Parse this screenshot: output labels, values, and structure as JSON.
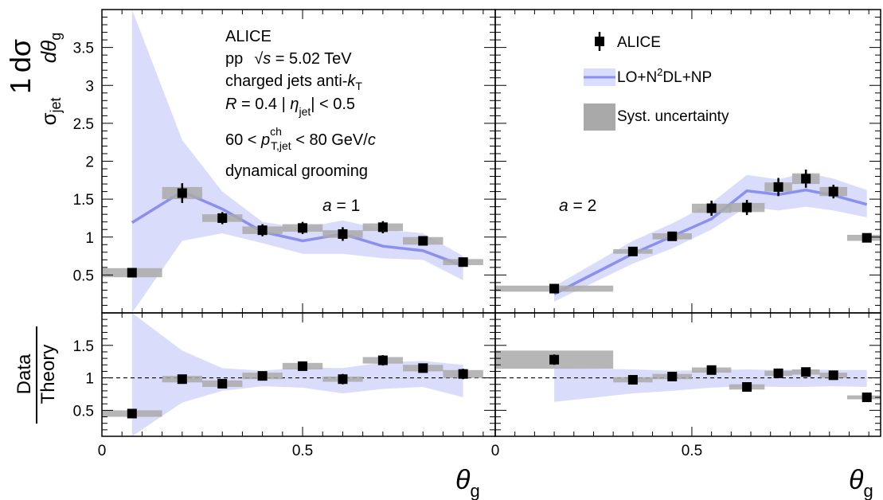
{
  "colors": {
    "band": "#dadcfb",
    "line": "#8a8ff0",
    "syst": "#a9a9a9",
    "marker": "#000000"
  },
  "info": {
    "experiment": "ALICE",
    "energy_prefix": "pp",
    "energy_sqrt": "√",
    "energy_s": "s",
    "energy_suffix": " = 5.02 TeV",
    "jets_text": "charged jets   anti-",
    "jets_k": "k",
    "jets_k_sub": "T",
    "radius_R": "R",
    "radius_rest": " = 0.4    | ",
    "eta_symbol": "η",
    "eta_sub": "jet",
    "eta_rest": "| < 0.5",
    "pt_lo": "60 < ",
    "pt_p": "p",
    "pt_sup": "ch",
    "pt_sub": "T,jet",
    "pt_hi": " < 80 GeV/",
    "pt_c": "c",
    "grooming": "dynamical grooming"
  },
  "legend": {
    "data": "ALICE",
    "theory_pre": "LO+N",
    "theory_sup": "2",
    "theory_post": "DL+NP",
    "syst": "Syst. uncertainty"
  },
  "axes": {
    "xlabel": "θ",
    "xlabel_sub": "g",
    "ylabel_top_num": "1",
    "ylabel_top_den": "σ",
    "ylabel_top_den_sub": "jet",
    "ylabel_top_frac_num": "dσ",
    "ylabel_top_frac_den": "dθ",
    "ylabel_top_frac_den_sub": "g",
    "ylabel_bottom_num": "Data",
    "ylabel_bottom_den": "Theory"
  },
  "chart_data": [
    {
      "type": "line",
      "panel": "left-top",
      "annotation_var": "a",
      "annotation_val": " = 1",
      "xlim": [
        0,
        0.98
      ],
      "ylim": [
        0,
        4.0
      ],
      "yticks": [
        0.5,
        1,
        1.5,
        2,
        2.5,
        3,
        3.5
      ],
      "ytick_labels": [
        "0.5",
        "1",
        "1.5",
        "2",
        "2.5",
        "3",
        "3.5"
      ],
      "data": [
        {
          "x": 0.075,
          "y": 0.53,
          "xerr": 0.075,
          "ystat": 0.05,
          "ysys": 0.06
        },
        {
          "x": 0.2,
          "y": 1.58,
          "xerr": 0.05,
          "ystat": 0.13,
          "ysys": 0.08
        },
        {
          "x": 0.3,
          "y": 1.25,
          "xerr": 0.05,
          "ystat": 0.08,
          "ysys": 0.05
        },
        {
          "x": 0.4,
          "y": 1.09,
          "xerr": 0.05,
          "ystat": 0.08,
          "ysys": 0.05
        },
        {
          "x": 0.5,
          "y": 1.12,
          "xerr": 0.05,
          "ystat": 0.08,
          "ysys": 0.05
        },
        {
          "x": 0.6,
          "y": 1.04,
          "xerr": 0.05,
          "ystat": 0.09,
          "ysys": 0.05
        },
        {
          "x": 0.7,
          "y": 1.13,
          "xerr": 0.05,
          "ystat": 0.08,
          "ysys": 0.05
        },
        {
          "x": 0.8,
          "y": 0.95,
          "xerr": 0.05,
          "ystat": 0.06,
          "ysys": 0.05
        },
        {
          "x": 0.9,
          "y": 0.67,
          "xerr": 0.05,
          "ystat": 0.05,
          "ysys": 0.04
        }
      ],
      "theory": {
        "x": [
          0.075,
          0.2,
          0.3,
          0.4,
          0.5,
          0.6,
          0.7,
          0.8,
          0.9
        ],
        "y": [
          1.19,
          1.6,
          1.37,
          1.07,
          0.95,
          1.04,
          0.88,
          0.82,
          0.62
        ],
        "lo": [
          0.0,
          0.95,
          1.05,
          0.92,
          0.78,
          0.78,
          0.72,
          0.7,
          0.43
        ],
        "hi": [
          4.1,
          2.28,
          1.6,
          1.2,
          1.12,
          1.22,
          1.1,
          1.05,
          0.75
        ]
      }
    },
    {
      "type": "line",
      "panel": "right-top",
      "annotation_var": "a",
      "annotation_val": " = 2",
      "xlim": [
        0,
        0.98
      ],
      "ylim": [
        0,
        4.0
      ],
      "data": [
        {
          "x": 0.15,
          "y": 0.32,
          "xerr": 0.15,
          "ystat": 0.04,
          "ysys": 0.04
        },
        {
          "x": 0.35,
          "y": 0.81,
          "xerr": 0.05,
          "ystat": 0.06,
          "ysys": 0.03
        },
        {
          "x": 0.45,
          "y": 1.01,
          "xerr": 0.05,
          "ystat": 0.06,
          "ysys": 0.04
        },
        {
          "x": 0.55,
          "y": 1.38,
          "xerr": 0.05,
          "ystat": 0.1,
          "ysys": 0.06
        },
        {
          "x": 0.64,
          "y": 1.39,
          "xerr": 0.045,
          "ystat": 0.1,
          "ysys": 0.06
        },
        {
          "x": 0.72,
          "y": 1.66,
          "xerr": 0.035,
          "ystat": 0.12,
          "ysys": 0.06
        },
        {
          "x": 0.79,
          "y": 1.77,
          "xerr": 0.035,
          "ystat": 0.12,
          "ysys": 0.07
        },
        {
          "x": 0.86,
          "y": 1.6,
          "xerr": 0.035,
          "ystat": 0.09,
          "ysys": 0.06
        },
        {
          "x": 0.945,
          "y": 0.99,
          "xerr": 0.05,
          "ystat": 0.05,
          "ysys": 0.04
        }
      ],
      "theory": {
        "x": [
          0.15,
          0.35,
          0.45,
          0.55,
          0.64,
          0.72,
          0.79,
          0.86,
          0.945
        ],
        "y": [
          0.25,
          0.78,
          1.01,
          1.24,
          1.61,
          1.56,
          1.62,
          1.55,
          1.43
        ],
        "lo": [
          0.15,
          0.65,
          0.85,
          1.1,
          1.4,
          1.35,
          1.4,
          1.35,
          1.26
        ],
        "hi": [
          0.35,
          0.95,
          1.18,
          1.45,
          1.82,
          1.76,
          1.85,
          1.77,
          1.62
        ]
      }
    },
    {
      "type": "scatter",
      "panel": "left-bottom",
      "xlim": [
        0,
        0.98
      ],
      "ylim": [
        0.1,
        2.0
      ],
      "xticks": [
        0,
        0.5
      ],
      "xtick_labels": [
        "0",
        "0.5"
      ],
      "yticks": [
        0.5,
        1,
        1.5
      ],
      "ytick_labels": [
        "0.5",
        "1",
        "1.5"
      ],
      "reference_line": 1,
      "data": [
        {
          "x": 0.075,
          "y": 0.45,
          "xerr": 0.075,
          "ystat": 0.03,
          "ysys": 0.05
        },
        {
          "x": 0.2,
          "y": 0.98,
          "xerr": 0.05,
          "ystat": 0.05,
          "ysys": 0.05
        },
        {
          "x": 0.3,
          "y": 0.91,
          "xerr": 0.05,
          "ystat": 0.05,
          "ysys": 0.05
        },
        {
          "x": 0.4,
          "y": 1.03,
          "xerr": 0.05,
          "ystat": 0.05,
          "ysys": 0.05
        },
        {
          "x": 0.5,
          "y": 1.18,
          "xerr": 0.05,
          "ystat": 0.06,
          "ysys": 0.05
        },
        {
          "x": 0.6,
          "y": 0.98,
          "xerr": 0.05,
          "ystat": 0.08,
          "ysys": 0.04
        },
        {
          "x": 0.7,
          "y": 1.27,
          "xerr": 0.05,
          "ystat": 0.08,
          "ysys": 0.05
        },
        {
          "x": 0.8,
          "y": 1.15,
          "xerr": 0.05,
          "ystat": 0.06,
          "ysys": 0.05
        },
        {
          "x": 0.9,
          "y": 1.06,
          "xerr": 0.05,
          "ystat": 0.08,
          "ysys": 0.06
        }
      ],
      "theory_band": {
        "x": [
          0.075,
          0.2,
          0.3,
          0.4,
          0.5,
          0.6,
          0.7,
          0.8,
          0.9
        ],
        "lo": [
          0.0,
          0.62,
          0.8,
          0.87,
          0.85,
          0.76,
          0.83,
          0.86,
          0.7
        ],
        "hi": [
          2.05,
          1.42,
          1.15,
          1.11,
          1.16,
          1.15,
          1.24,
          1.26,
          1.2
        ]
      }
    },
    {
      "type": "scatter",
      "panel": "right-bottom",
      "xlim": [
        0,
        0.98
      ],
      "ylim": [
        0.1,
        2.0
      ],
      "xticks": [
        0,
        0.5
      ],
      "xtick_labels": [
        "0",
        "0.5"
      ],
      "reference_line": 1,
      "data": [
        {
          "x": 0.15,
          "y": 1.28,
          "xerr": 0.15,
          "ystat": 0.08,
          "ysys": 0.14
        },
        {
          "x": 0.35,
          "y": 0.97,
          "xerr": 0.05,
          "ystat": 0.05,
          "ysys": 0.04
        },
        {
          "x": 0.45,
          "y": 1.02,
          "xerr": 0.05,
          "ystat": 0.05,
          "ysys": 0.04
        },
        {
          "x": 0.55,
          "y": 1.12,
          "xerr": 0.05,
          "ystat": 0.05,
          "ysys": 0.04
        },
        {
          "x": 0.64,
          "y": 0.86,
          "xerr": 0.045,
          "ystat": 0.04,
          "ysys": 0.04
        },
        {
          "x": 0.72,
          "y": 1.07,
          "xerr": 0.035,
          "ystat": 0.05,
          "ysys": 0.04
        },
        {
          "x": 0.79,
          "y": 1.09,
          "xerr": 0.035,
          "ystat": 0.05,
          "ysys": 0.04
        },
        {
          "x": 0.86,
          "y": 1.04,
          "xerr": 0.035,
          "ystat": 0.04,
          "ysys": 0.04
        },
        {
          "x": 0.945,
          "y": 0.7,
          "xerr": 0.05,
          "ystat": 0.03,
          "ysys": 0.03
        }
      ],
      "theory_band": {
        "x": [
          0.15,
          0.35,
          0.45,
          0.55,
          0.64,
          0.72,
          0.79,
          0.86,
          0.945
        ],
        "lo": [
          0.63,
          0.76,
          0.8,
          0.85,
          0.87,
          0.86,
          0.86,
          0.87,
          0.86
        ],
        "hi": [
          1.15,
          1.13,
          1.11,
          1.12,
          1.13,
          1.12,
          1.13,
          1.12,
          1.12
        ]
      }
    }
  ]
}
